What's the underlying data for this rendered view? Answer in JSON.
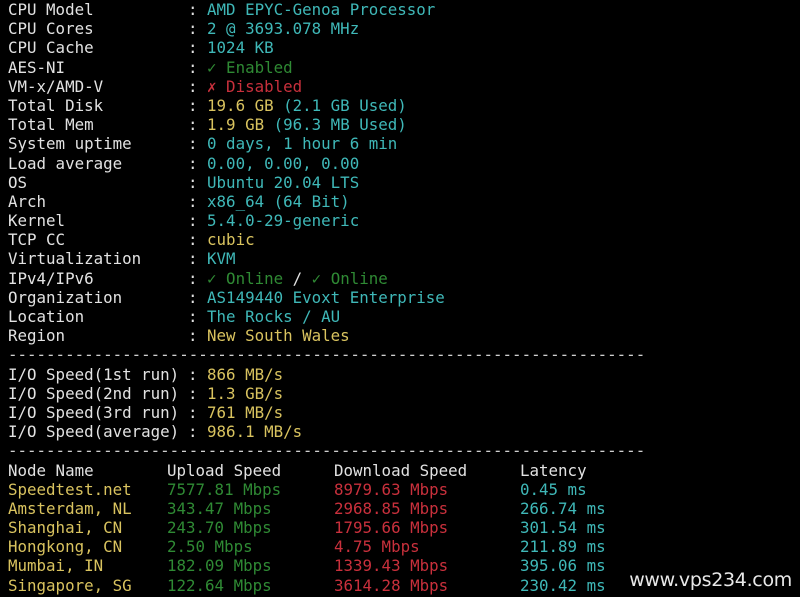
{
  "system_info": [
    {
      "label": "CPU Model",
      "parts": [
        {
          "text": "AMD EPYC-Genoa Processor",
          "color": "c"
        }
      ]
    },
    {
      "label": "CPU Cores",
      "parts": [
        {
          "text": "2 @ 3693.078 MHz",
          "color": "c"
        }
      ]
    },
    {
      "label": "CPU Cache",
      "parts": [
        {
          "text": "1024 KB",
          "color": "c"
        }
      ]
    },
    {
      "label": "AES-NI",
      "parts": [
        {
          "text": "✓ Enabled",
          "color": "g"
        }
      ]
    },
    {
      "label": "VM-x/AMD-V",
      "parts": [
        {
          "text": "✗ Disabled",
          "color": "r"
        }
      ]
    },
    {
      "label": "Total Disk",
      "parts": [
        {
          "text": "19.6 GB",
          "color": "y"
        },
        {
          "text": " (2.1 GB Used)",
          "color": "c"
        }
      ]
    },
    {
      "label": "Total Mem",
      "parts": [
        {
          "text": "1.9 GB",
          "color": "y"
        },
        {
          "text": " (96.3 MB Used)",
          "color": "c"
        }
      ]
    },
    {
      "label": "System uptime",
      "parts": [
        {
          "text": "0 days, 1 hour 6 min",
          "color": "c"
        }
      ]
    },
    {
      "label": "Load average",
      "parts": [
        {
          "text": "0.00, 0.00, 0.00",
          "color": "c"
        }
      ]
    },
    {
      "label": "OS",
      "parts": [
        {
          "text": "Ubuntu 20.04 LTS",
          "color": "c"
        }
      ]
    },
    {
      "label": "Arch",
      "parts": [
        {
          "text": "x86_64 (64 Bit)",
          "color": "c"
        }
      ]
    },
    {
      "label": "Kernel",
      "parts": [
        {
          "text": "5.4.0-29-generic",
          "color": "c"
        }
      ]
    },
    {
      "label": "TCP CC",
      "parts": [
        {
          "text": "cubic",
          "color": "y"
        }
      ]
    },
    {
      "label": "Virtualization",
      "parts": [
        {
          "text": "KVM",
          "color": "c"
        }
      ]
    },
    {
      "label": "IPv4/IPv6",
      "parts": [
        {
          "text": "✓ Online",
          "color": "g"
        },
        {
          "text": " / ",
          "color": "w"
        },
        {
          "text": "✓ Online",
          "color": "g"
        }
      ]
    },
    {
      "label": "Organization",
      "parts": [
        {
          "text": "AS149440 Evoxt Enterprise",
          "color": "c"
        }
      ]
    },
    {
      "label": "Location",
      "parts": [
        {
          "text": "The Rocks / AU",
          "color": "c"
        }
      ]
    },
    {
      "label": "Region",
      "parts": [
        {
          "text": "New South Wales",
          "color": "y"
        }
      ]
    }
  ],
  "separator": "-------------------------------------------------------------------",
  "io": [
    {
      "label": "I/O Speed(1st run)",
      "value": "866 MB/s"
    },
    {
      "label": "I/O Speed(2nd run)",
      "value": "1.3 GB/s"
    },
    {
      "label": "I/O Speed(3rd run)",
      "value": "761 MB/s"
    },
    {
      "label": "I/O Speed(average)",
      "value": "986.1 MB/s"
    }
  ],
  "colon": ": ",
  "speedtest": {
    "headers": [
      "Node Name",
      "Upload Speed",
      "Download Speed",
      "Latency"
    ],
    "rows": [
      [
        "Speedtest.net",
        "7577.81 Mbps",
        "8979.63 Mbps",
        "0.45 ms"
      ],
      [
        "Amsterdam, NL",
        "343.47 Mbps",
        "2968.85 Mbps",
        "266.74 ms"
      ],
      [
        "Shanghai, CN",
        "243.70 Mbps",
        "1795.66 Mbps",
        "301.54 ms"
      ],
      [
        "Hongkong, CN",
        "2.50 Mbps",
        "4.75 Mbps",
        "211.89 ms"
      ],
      [
        "Mumbai, IN",
        "182.09 Mbps",
        "1339.43 Mbps",
        "395.06 ms"
      ],
      [
        "Singapore, SG",
        "122.64 Mbps",
        "3614.28 Mbps",
        "230.42 ms"
      ]
    ]
  },
  "watermark": "www.vps234.com"
}
